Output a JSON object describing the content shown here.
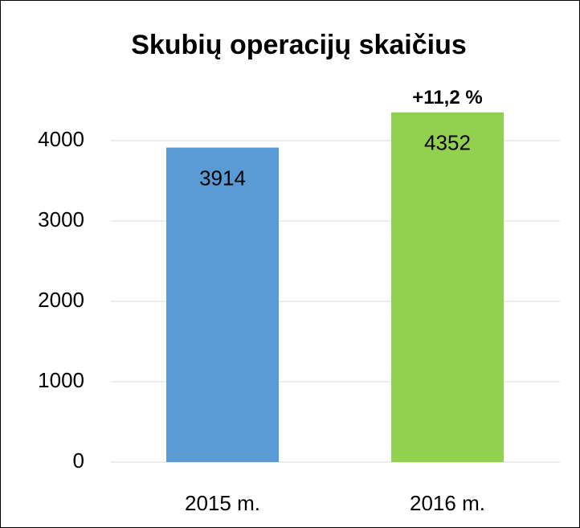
{
  "chart_data": {
    "type": "bar",
    "title": "Skubių operacijų skaičius",
    "annotation": "+11,2 %",
    "categories": [
      "2015 m.",
      "2016 m."
    ],
    "values": [
      3914,
      4352
    ],
    "colors": [
      "#5b9bd5",
      "#92d050"
    ],
    "ylim": [
      0,
      4400
    ],
    "yticks": [
      0,
      1000,
      2000,
      3000,
      4000
    ],
    "grid": true
  }
}
